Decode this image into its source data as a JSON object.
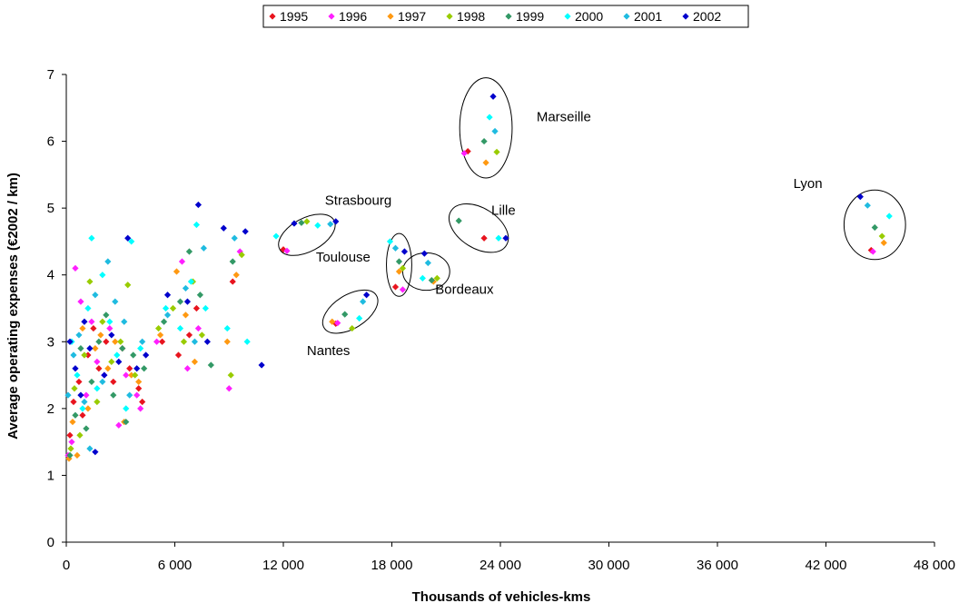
{
  "chart_data": {
    "type": "scatter",
    "xlabel": "Thousands of vehicles-kms",
    "ylabel": "Average operating expenses (€2002 / km)",
    "xlim": [
      0,
      48000
    ],
    "ylim": [
      0,
      7
    ],
    "x_ticks": [
      0,
      6000,
      12000,
      18000,
      24000,
      30000,
      36000,
      42000,
      48000
    ],
    "x_tick_labels": [
      "0",
      "6 000",
      "12 000",
      "18 000",
      "24 000",
      "30 000",
      "36 000",
      "42 000",
      "48 000"
    ],
    "y_ticks": [
      0,
      1,
      2,
      3,
      4,
      5,
      6,
      7
    ],
    "y_tick_labels": [
      "0",
      "1",
      "2",
      "3",
      "4",
      "5",
      "6",
      "7"
    ],
    "grid": false,
    "legend_position": "top-center",
    "series": [
      {
        "name": "1995",
        "color": "#e8141e",
        "points": [
          [
            200,
            1.6
          ],
          [
            400,
            2.1
          ],
          [
            700,
            2.4
          ],
          [
            900,
            1.9
          ],
          [
            1200,
            2.8
          ],
          [
            1500,
            3.2
          ],
          [
            1800,
            2.6
          ],
          [
            2200,
            3.0
          ],
          [
            2600,
            2.4
          ],
          [
            3100,
            2.9
          ],
          [
            3500,
            2.6
          ],
          [
            4000,
            2.3
          ],
          [
            4200,
            2.1
          ],
          [
            5300,
            3.0
          ],
          [
            6200,
            2.8
          ],
          [
            6800,
            3.1
          ],
          [
            7200,
            3.5
          ],
          [
            9200,
            3.9
          ],
          [
            12000,
            4.38
          ],
          [
            14900,
            3.27
          ],
          [
            18200,
            3.82
          ],
          [
            22200,
            5.85
          ],
          [
            23100,
            4.55
          ],
          [
            44500,
            4.37
          ]
        ]
      },
      {
        "name": "1996",
        "color": "#ff1fff",
        "points": [
          [
            100,
            1.3
          ],
          [
            300,
            1.5
          ],
          [
            500,
            4.1
          ],
          [
            800,
            3.6
          ],
          [
            1100,
            2.2
          ],
          [
            1400,
            3.3
          ],
          [
            1700,
            2.7
          ],
          [
            2100,
            2.5
          ],
          [
            2400,
            3.2
          ],
          [
            2900,
            1.75
          ],
          [
            3300,
            2.5
          ],
          [
            3900,
            2.2
          ],
          [
            4100,
            2.0
          ],
          [
            5000,
            3.0
          ],
          [
            6400,
            4.2
          ],
          [
            6700,
            2.6
          ],
          [
            7300,
            3.2
          ],
          [
            9000,
            2.3
          ],
          [
            9600,
            4.35
          ],
          [
            12200,
            4.36
          ],
          [
            15000,
            3.28
          ],
          [
            18600,
            3.78
          ],
          [
            22000,
            5.82
          ],
          [
            44600,
            4.35
          ]
        ]
      },
      {
        "name": "1997",
        "color": "#ff9911",
        "points": [
          [
            150,
            1.25
          ],
          [
            350,
            1.8
          ],
          [
            600,
            1.3
          ],
          [
            900,
            3.2
          ],
          [
            1200,
            2.0
          ],
          [
            1600,
            2.9
          ],
          [
            1900,
            3.1
          ],
          [
            2300,
            2.6
          ],
          [
            2700,
            3.0
          ],
          [
            3200,
            1.8
          ],
          [
            3600,
            2.5
          ],
          [
            4000,
            2.4
          ],
          [
            5200,
            3.1
          ],
          [
            6100,
            4.05
          ],
          [
            6600,
            3.4
          ],
          [
            7100,
            2.7
          ],
          [
            8900,
            3.0
          ],
          [
            9400,
            4.0
          ],
          [
            14700,
            3.3
          ],
          [
            18400,
            4.05
          ],
          [
            20300,
            3.9
          ],
          [
            23200,
            5.68
          ],
          [
            45200,
            4.48
          ]
        ]
      },
      {
        "name": "1998",
        "color": "#99cc00",
        "points": [
          [
            250,
            1.4
          ],
          [
            450,
            2.3
          ],
          [
            750,
            1.6
          ],
          [
            1000,
            2.8
          ],
          [
            1300,
            3.9
          ],
          [
            1700,
            2.1
          ],
          [
            2000,
            3.3
          ],
          [
            2500,
            2.7
          ],
          [
            3000,
            3.0
          ],
          [
            3400,
            3.85
          ],
          [
            3800,
            2.5
          ],
          [
            5100,
            3.2
          ],
          [
            5900,
            3.5
          ],
          [
            6500,
            3.0
          ],
          [
            7000,
            3.9
          ],
          [
            7500,
            3.1
          ],
          [
            9100,
            2.5
          ],
          [
            9700,
            4.3
          ],
          [
            13300,
            4.8
          ],
          [
            15800,
            3.2
          ],
          [
            18600,
            4.1
          ],
          [
            20500,
            3.95
          ],
          [
            23800,
            5.84
          ],
          [
            45100,
            4.58
          ]
        ]
      },
      {
        "name": "1999",
        "color": "#339966",
        "points": [
          [
            200,
            1.3
          ],
          [
            500,
            1.9
          ],
          [
            800,
            2.9
          ],
          [
            1100,
            1.7
          ],
          [
            1400,
            2.4
          ],
          [
            1800,
            3.0
          ],
          [
            2200,
            3.4
          ],
          [
            2600,
            2.2
          ],
          [
            3100,
            2.9
          ],
          [
            3300,
            1.8
          ],
          [
            3700,
            2.8
          ],
          [
            4300,
            2.6
          ],
          [
            5400,
            3.3
          ],
          [
            6300,
            3.6
          ],
          [
            6800,
            4.35
          ],
          [
            7400,
            3.7
          ],
          [
            8000,
            2.65
          ],
          [
            9200,
            4.2
          ],
          [
            13000,
            4.78
          ],
          [
            15400,
            3.41
          ],
          [
            18400,
            4.2
          ],
          [
            20200,
            3.92
          ],
          [
            21700,
            4.81
          ],
          [
            23100,
            6.0
          ],
          [
            44700,
            4.71
          ]
        ]
      },
      {
        "name": "2000",
        "color": "#00ffff",
        "points": [
          [
            300,
            3.0
          ],
          [
            600,
            2.5
          ],
          [
            900,
            2.0
          ],
          [
            1200,
            3.5
          ],
          [
            1400,
            4.55
          ],
          [
            1700,
            2.3
          ],
          [
            2000,
            4.0
          ],
          [
            2400,
            3.3
          ],
          [
            2800,
            2.8
          ],
          [
            3300,
            2.0
          ],
          [
            3600,
            4.5
          ],
          [
            4100,
            2.9
          ],
          [
            5500,
            3.5
          ],
          [
            6300,
            3.2
          ],
          [
            6900,
            3.9
          ],
          [
            7200,
            4.75
          ],
          [
            7700,
            3.5
          ],
          [
            8900,
            3.2
          ],
          [
            10000,
            3.0
          ],
          [
            11600,
            4.58
          ],
          [
            13900,
            4.74
          ],
          [
            16200,
            3.35
          ],
          [
            17900,
            4.5
          ],
          [
            19700,
            3.95
          ],
          [
            23400,
            6.36
          ],
          [
            23900,
            4.55
          ],
          [
            45500,
            4.88
          ]
        ]
      },
      {
        "name": "2001",
        "color": "#1fbbe0",
        "points": [
          [
            100,
            2.2
          ],
          [
            400,
            2.8
          ],
          [
            700,
            3.1
          ],
          [
            1000,
            2.1
          ],
          [
            1300,
            1.4
          ],
          [
            1600,
            3.7
          ],
          [
            2000,
            2.4
          ],
          [
            2300,
            4.2
          ],
          [
            2700,
            3.6
          ],
          [
            3200,
            3.3
          ],
          [
            3500,
            2.2
          ],
          [
            4200,
            3.0
          ],
          [
            5600,
            3.4
          ],
          [
            6600,
            3.8
          ],
          [
            7100,
            3.0
          ],
          [
            7600,
            4.4
          ],
          [
            9300,
            4.55
          ],
          [
            14600,
            4.76
          ],
          [
            16400,
            3.6
          ],
          [
            18200,
            4.4
          ],
          [
            20000,
            4.18
          ],
          [
            23700,
            6.15
          ],
          [
            44300,
            5.04
          ]
        ]
      },
      {
        "name": "2002",
        "color": "#0000cc",
        "points": [
          [
            200,
            3.0
          ],
          [
            500,
            2.6
          ],
          [
            800,
            2.2
          ],
          [
            1000,
            3.3
          ],
          [
            1300,
            2.9
          ],
          [
            1600,
            1.35
          ],
          [
            2100,
            2.5
          ],
          [
            2500,
            3.1
          ],
          [
            2900,
            2.7
          ],
          [
            3400,
            4.55
          ],
          [
            3900,
            2.6
          ],
          [
            4400,
            2.8
          ],
          [
            5600,
            3.7
          ],
          [
            6700,
            3.6
          ],
          [
            7300,
            5.05
          ],
          [
            7800,
            3.0
          ],
          [
            8700,
            4.7
          ],
          [
            9900,
            4.65
          ],
          [
            10800,
            2.65
          ],
          [
            12600,
            4.77
          ],
          [
            14900,
            4.8
          ],
          [
            16600,
            3.7
          ],
          [
            18700,
            4.35
          ],
          [
            19800,
            4.32
          ],
          [
            23600,
            6.67
          ],
          [
            24300,
            4.55
          ],
          [
            43900,
            5.17
          ]
        ]
      }
    ],
    "annotations": [
      {
        "text": "Marseille",
        "x": 26000,
        "y": 6.3
      },
      {
        "text": "Strasbourg",
        "x": 14300,
        "y": 5.05
      },
      {
        "text": "Lille",
        "x": 23500,
        "y": 4.9
      },
      {
        "text": "Toulouse",
        "x": 13800,
        "y": 4.2
      },
      {
        "text": "Bordeaux",
        "x": 20400,
        "y": 3.72
      },
      {
        "text": "Nantes",
        "x": 13300,
        "y": 2.8
      },
      {
        "text": "Lyon",
        "x": 40200,
        "y": 5.3
      }
    ],
    "cluster_rings": [
      {
        "city": "Marseille",
        "cx": 23200,
        "cy": 6.2,
        "rx": 1450,
        "ry": 0.75,
        "rotate": 0
      },
      {
        "city": "Strasbourg",
        "cx": 13300,
        "cy": 4.6,
        "rx": 1700,
        "ry": 0.25,
        "rotate": -28
      },
      {
        "city": "Lille",
        "cx": 22800,
        "cy": 4.7,
        "rx": 1800,
        "ry": 0.3,
        "rotate": 32
      },
      {
        "city": "Toulouse",
        "cx": 18400,
        "cy": 4.15,
        "rx": 700,
        "ry": 0.47,
        "rotate": 0
      },
      {
        "city": "Bordeaux",
        "cx": 19900,
        "cy": 4.05,
        "rx": 1300,
        "ry": 0.28,
        "rotate": 0
      },
      {
        "city": "Nantes",
        "cx": 15700,
        "cy": 3.45,
        "rx": 1700,
        "ry": 0.25,
        "rotate": -32
      },
      {
        "city": "Lyon",
        "cx": 44700,
        "cy": 4.75,
        "rx": 1700,
        "ry": 0.52,
        "rotate": 0
      }
    ]
  }
}
